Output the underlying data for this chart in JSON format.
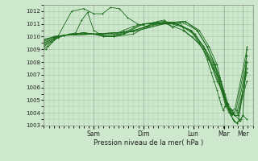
{
  "bg_color": "#cde8cd",
  "grid_color": "#a8c8a8",
  "line_color": "#1a6b1a",
  "xlabel": "Pression niveau de la mer( hPa )",
  "ylim": [
    1003,
    1012.5
  ],
  "yticks": [
    1003,
    1004,
    1005,
    1006,
    1007,
    1008,
    1009,
    1010,
    1011,
    1012
  ],
  "day_labels": [
    "Sam",
    "Dim",
    "Lun",
    "Mar",
    "Mer"
  ],
  "day_positions": [
    0.25,
    0.5,
    0.75,
    0.905,
    1.0
  ],
  "xlim": [
    0.0,
    1.05
  ],
  "series": [
    {
      "x": [
        0.0,
        0.02,
        0.04,
        0.07,
        0.1,
        0.13,
        0.16,
        0.19,
        0.22,
        0.25,
        0.3,
        0.35,
        0.4,
        0.45,
        0.5,
        0.55,
        0.6,
        0.65,
        0.7,
        0.75,
        0.8,
        0.84,
        0.87,
        0.895,
        0.91,
        0.925,
        0.94,
        0.955,
        0.97,
        0.985,
        1.0,
        1.02
      ],
      "y": [
        1009.0,
        1009.3,
        1009.6,
        1009.9,
        1010.1,
        1010.2,
        1010.3,
        1011.3,
        1011.9,
        1010.5,
        1010.0,
        1010.1,
        1010.5,
        1010.8,
        1011.0,
        1011.1,
        1011.2,
        1011.1,
        1010.8,
        1010.2,
        1009.0,
        1007.8,
        1006.5,
        1005.8,
        1005.0,
        1004.4,
        1003.8,
        1003.4,
        1003.2,
        1003.4,
        1003.8,
        1009.2
      ]
    },
    {
      "x": [
        0.0,
        0.05,
        0.1,
        0.15,
        0.2,
        0.25,
        0.3,
        0.35,
        0.4,
        0.5,
        0.6,
        0.7,
        0.78,
        0.83,
        0.87,
        0.895,
        0.91,
        0.925,
        0.94,
        0.96,
        0.98,
        1.02
      ],
      "y": [
        1009.2,
        1009.8,
        1010.1,
        1010.2,
        1010.3,
        1010.2,
        1010.0,
        1010.0,
        1010.2,
        1011.0,
        1011.1,
        1010.5,
        1009.5,
        1008.2,
        1007.0,
        1006.0,
        1005.2,
        1004.5,
        1004.0,
        1003.8,
        1003.5,
        1008.0
      ]
    },
    {
      "x": [
        0.0,
        0.05,
        0.1,
        0.15,
        0.2,
        0.25,
        0.35,
        0.45,
        0.55,
        0.65,
        0.74,
        0.8,
        0.85,
        0.88,
        0.9,
        0.915,
        0.93,
        0.945,
        0.96,
        0.975,
        1.02
      ],
      "y": [
        1009.3,
        1009.8,
        1010.1,
        1010.2,
        1010.3,
        1010.2,
        1010.0,
        1010.2,
        1011.1,
        1011.1,
        1010.5,
        1009.3,
        1008.0,
        1006.8,
        1005.8,
        1005.0,
        1004.3,
        1004.0,
        1003.8,
        1003.8,
        1006.5
      ]
    },
    {
      "x": [
        0.0,
        0.05,
        0.1,
        0.2,
        0.25,
        0.35,
        0.5,
        0.65,
        0.74,
        0.8,
        0.85,
        0.88,
        0.9,
        0.915,
        0.93,
        0.945,
        0.96,
        0.975,
        1.02
      ],
      "y": [
        1009.4,
        1009.9,
        1010.1,
        1010.3,
        1010.2,
        1010.0,
        1011.0,
        1011.0,
        1010.5,
        1009.2,
        1007.8,
        1006.5,
        1005.5,
        1004.7,
        1004.2,
        1003.9,
        1003.8,
        1003.8,
        1007.2
      ]
    },
    {
      "x": [
        0.0,
        0.05,
        0.1,
        0.2,
        0.25,
        0.4,
        0.55,
        0.67,
        0.76,
        0.81,
        0.85,
        0.88,
        0.9,
        0.915,
        0.93,
        0.945,
        0.96,
        0.975,
        1.02
      ],
      "y": [
        1009.5,
        1009.9,
        1010.1,
        1010.3,
        1010.2,
        1010.2,
        1011.0,
        1011.0,
        1010.2,
        1009.0,
        1007.5,
        1006.3,
        1005.3,
        1004.5,
        1004.0,
        1003.9,
        1003.8,
        1003.8,
        1007.5
      ]
    },
    {
      "x": [
        0.0,
        0.05,
        0.1,
        0.25,
        0.4,
        0.6,
        0.7,
        0.77,
        0.82,
        0.86,
        0.89,
        0.91,
        0.925,
        0.94,
        0.955,
        0.97,
        1.02
      ],
      "y": [
        1009.6,
        1010.0,
        1010.1,
        1010.2,
        1010.3,
        1011.1,
        1011.1,
        1010.5,
        1009.2,
        1007.8,
        1006.5,
        1005.5,
        1004.7,
        1004.3,
        1004.0,
        1004.0,
        1008.0
      ]
    },
    {
      "x": [
        0.0,
        0.05,
        0.1,
        0.25,
        0.45,
        0.62,
        0.71,
        0.78,
        0.83,
        0.87,
        0.89,
        0.905,
        0.92,
        0.935,
        0.95,
        0.965,
        1.02
      ],
      "y": [
        1009.7,
        1010.0,
        1010.1,
        1010.2,
        1010.4,
        1011.1,
        1011.2,
        1010.5,
        1009.2,
        1007.8,
        1006.5,
        1005.5,
        1004.7,
        1004.3,
        1004.0,
        1004.2,
        1008.5
      ]
    },
    {
      "x": [
        0.0,
        0.06,
        0.1,
        0.25,
        0.45,
        0.63,
        0.71,
        0.77,
        0.82,
        0.86,
        0.88,
        0.9,
        0.915,
        0.93,
        0.945,
        0.96,
        1.02
      ],
      "y": [
        1009.8,
        1010.0,
        1010.1,
        1010.2,
        1010.4,
        1011.1,
        1011.2,
        1010.5,
        1009.2,
        1007.8,
        1006.5,
        1005.5,
        1004.8,
        1004.3,
        1004.2,
        1004.3,
        1009.0
      ]
    },
    {
      "x": [
        0.01,
        0.07,
        0.14,
        0.2,
        0.25,
        0.295,
        0.335,
        0.38,
        0.42,
        0.47,
        0.52,
        0.57,
        0.605,
        0.625,
        0.645,
        0.665,
        0.685,
        0.705,
        0.725,
        0.745,
        0.775,
        0.8,
        0.82,
        0.84,
        0.855,
        0.87,
        0.88,
        0.89,
        0.9,
        0.91,
        0.92,
        0.93,
        0.94,
        0.95,
        0.96,
        0.97,
        0.98,
        0.99,
        1.0,
        1.02
      ],
      "y": [
        1009.0,
        1010.0,
        1012.0,
        1012.2,
        1011.8,
        1011.8,
        1012.3,
        1012.2,
        1011.5,
        1011.0,
        1010.8,
        1011.2,
        1011.3,
        1011.0,
        1010.7,
        1010.9,
        1011.1,
        1010.5,
        1010.2,
        1010.0,
        1009.5,
        1009.0,
        1008.2,
        1007.2,
        1006.5,
        1005.8,
        1005.2,
        1004.7,
        1004.2,
        1004.5,
        1004.8,
        1004.3,
        1003.9,
        1003.5,
        1003.3,
        1003.2,
        1003.4,
        1003.5,
        1003.8,
        1003.5
      ]
    }
  ]
}
